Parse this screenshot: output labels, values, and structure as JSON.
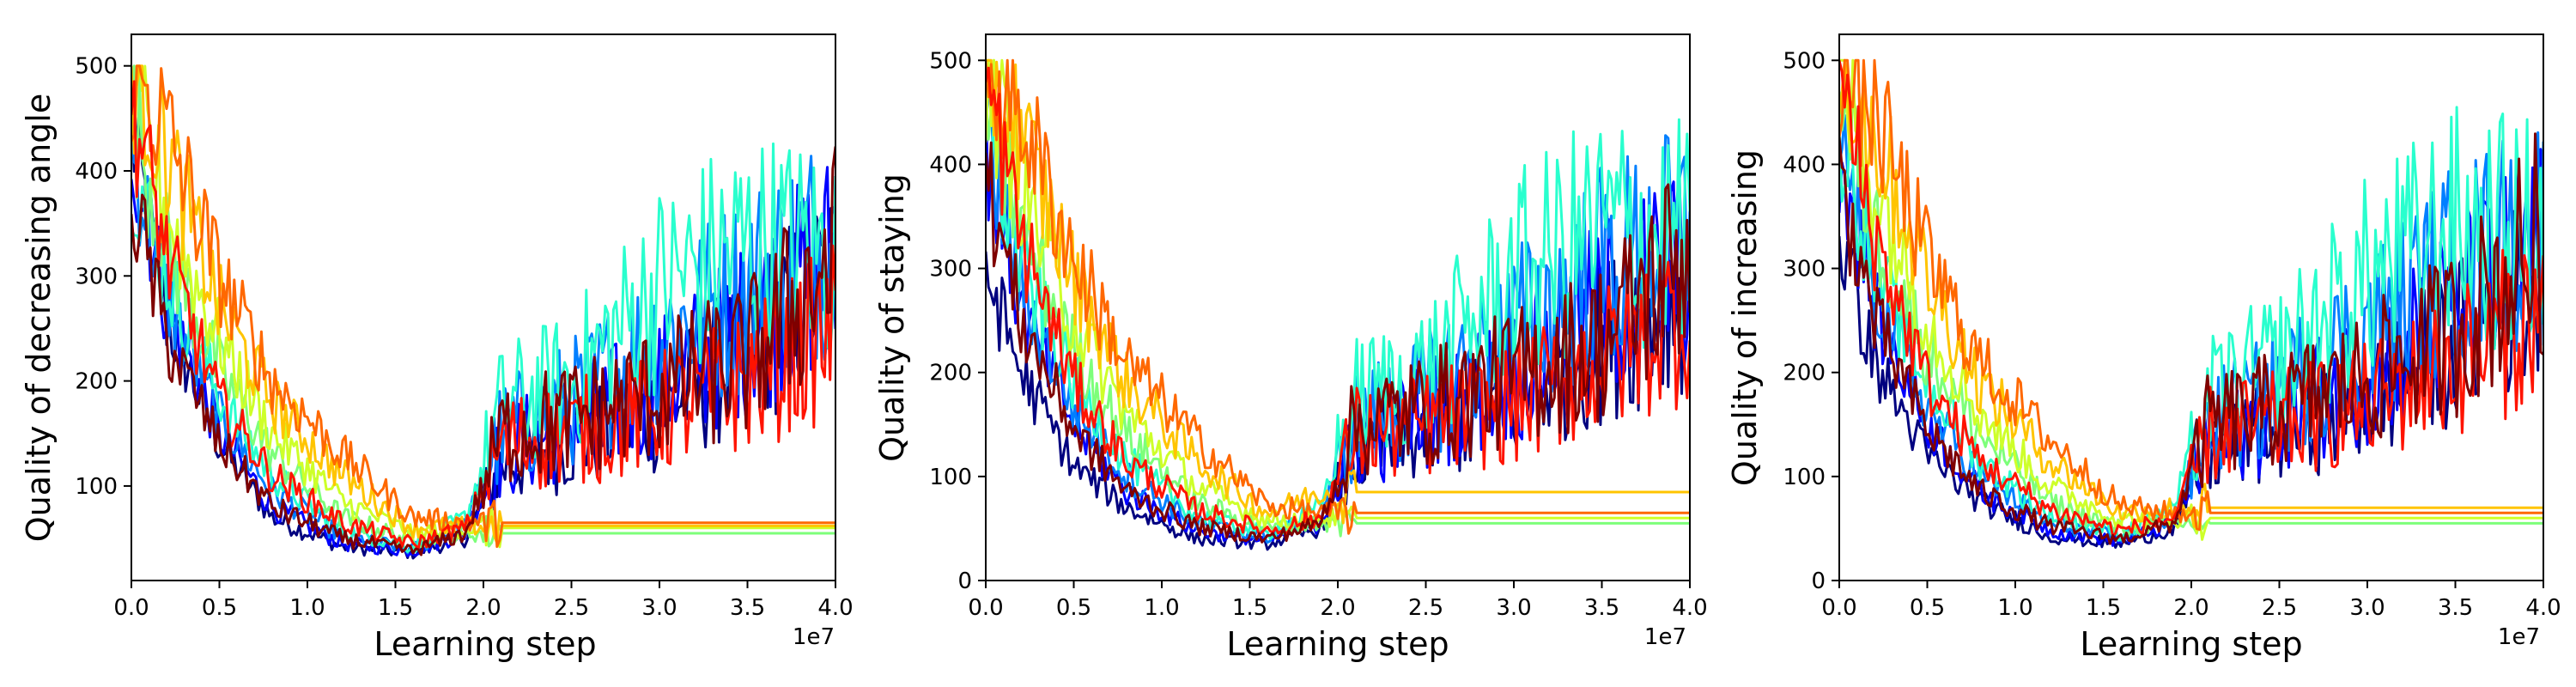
{
  "chart_data": [
    {
      "type": "line",
      "title": "",
      "xlabel": "Learning step",
      "ylabel": "Quality of decreasing angle",
      "x_offset_label": "1e7",
      "xlim": [
        0,
        40000000
      ],
      "ylim": [
        10,
        530
      ],
      "x_ticks": [
        0,
        5000000,
        10000000,
        15000000,
        20000000,
        25000000,
        30000000,
        35000000,
        40000000
      ],
      "x_tick_labels": [
        "0.0",
        "0.5",
        "1.0",
        "1.5",
        "2.0",
        "2.5",
        "3.0",
        "3.5",
        "4.0"
      ],
      "y_ticks": [
        100,
        200,
        300,
        400,
        500
      ],
      "y_tick_labels": [
        "100",
        "200",
        "300",
        "400",
        "500"
      ],
      "grid": false,
      "legend": "none",
      "colormap": "jet",
      "series_count": 24,
      "series": [
        {
          "color": "#00007f",
          "x": [
            0,
            2000000,
            5000000,
            8000000,
            12000000,
            16000000,
            19000000,
            21000000,
            25000000,
            30000000,
            35000000,
            40000000
          ],
          "values": [
            440,
            260,
            140,
            70,
            42,
            36,
            50,
            120,
            145,
            170,
            230,
            300
          ]
        },
        {
          "color": "#0000ff",
          "x": [
            0,
            2000000,
            5000000,
            8000000,
            12000000,
            16000000,
            19000000,
            21000000,
            25000000,
            30000000,
            35000000,
            40000000
          ],
          "values": [
            430,
            270,
            150,
            80,
            45,
            38,
            55,
            130,
            160,
            195,
            250,
            320
          ]
        },
        {
          "color": "#007fff",
          "x": [
            0,
            2000000,
            5000000,
            8000000,
            12000000,
            16000000,
            19000000,
            21000000,
            25000000,
            30000000,
            35000000,
            40000000
          ],
          "values": [
            420,
            280,
            165,
            95,
            52,
            40,
            62,
            150,
            180,
            240,
            290,
            340
          ]
        },
        {
          "color": "#29ffce",
          "x": [
            0,
            2000000,
            5000000,
            8000000,
            12000000,
            16000000,
            19000000,
            21000000,
            25000000,
            30000000,
            35000000,
            40000000
          ],
          "values": [
            410,
            300,
            185,
            110,
            58,
            42,
            70,
            175,
            200,
            290,
            330,
            320
          ]
        },
        {
          "color": "#7dff7a",
          "x": [
            0,
            2000000,
            5000000,
            8000000,
            12000000,
            16000000,
            19000000,
            21000000,
            40000000
          ],
          "values": [
            460,
            330,
            210,
            130,
            70,
            48,
            55,
            55,
            55
          ]
        },
        {
          "color": "#ceff29",
          "x": [
            0,
            2000000,
            5000000,
            8000000,
            12000000,
            16000000,
            19000000,
            21000000,
            40000000
          ],
          "values": [
            480,
            360,
            240,
            150,
            85,
            55,
            60,
            60,
            60
          ]
        },
        {
          "color": "#ffc400",
          "x": [
            0,
            2000000,
            5000000,
            8000000,
            12000000,
            16000000,
            19000000,
            21000000,
            40000000
          ],
          "values": [
            500,
            420,
            270,
            180,
            110,
            60,
            62,
            62,
            62
          ]
        },
        {
          "color": "#ff6800",
          "x": [
            0,
            2000000,
            5000000,
            8000000,
            12000000,
            16000000,
            19000000,
            21000000,
            40000000
          ],
          "values": [
            500,
            440,
            300,
            200,
            130,
            70,
            65,
            65,
            65
          ]
        },
        {
          "color": "#ff1300",
          "x": [
            0,
            2000000,
            5000000,
            8000000,
            12000000,
            16000000,
            19000000,
            21000000,
            25000000,
            30000000,
            35000000,
            40000000
          ],
          "values": [
            470,
            320,
            180,
            110,
            65,
            45,
            60,
            140,
            150,
            170,
            200,
            250
          ]
        },
        {
          "color": "#7f0000",
          "x": [
            0,
            2000000,
            5000000,
            8000000,
            12000000,
            16000000,
            19000000,
            21000000,
            25000000,
            30000000,
            35000000,
            40000000
          ],
          "values": [
            380,
            240,
            140,
            80,
            50,
            38,
            55,
            150,
            165,
            190,
            220,
            320
          ]
        }
      ]
    },
    {
      "type": "line",
      "title": "",
      "xlabel": "Learning step",
      "ylabel": "Quality of staying",
      "x_offset_label": "1e7",
      "xlim": [
        0,
        40000000
      ],
      "ylim": [
        0,
        525
      ],
      "x_ticks": [
        0,
        5000000,
        10000000,
        15000000,
        20000000,
        25000000,
        30000000,
        35000000,
        40000000
      ],
      "x_tick_labels": [
        "0.0",
        "0.5",
        "1.0",
        "1.5",
        "2.0",
        "2.5",
        "3.0",
        "3.5",
        "4.0"
      ],
      "y_ticks": [
        0,
        100,
        200,
        300,
        400,
        500
      ],
      "y_tick_labels": [
        "0",
        "100",
        "200",
        "300",
        "400",
        "500"
      ],
      "grid": false,
      "legend": "none",
      "colormap": "jet",
      "series_count": 24,
      "series": [
        {
          "color": "#00007f",
          "x": [
            0,
            2000000,
            5000000,
            8000000,
            12000000,
            16000000,
            19000000,
            21000000,
            25000000,
            30000000,
            35000000,
            40000000
          ],
          "values": [
            300,
            200,
            110,
            70,
            40,
            35,
            50,
            120,
            145,
            170,
            230,
            280
          ]
        },
        {
          "color": "#0000ff",
          "x": [
            0,
            2000000,
            5000000,
            8000000,
            12000000,
            16000000,
            19000000,
            21000000,
            25000000,
            30000000,
            35000000,
            40000000
          ],
          "values": [
            420,
            260,
            150,
            85,
            48,
            38,
            55,
            130,
            160,
            200,
            260,
            310
          ]
        },
        {
          "color": "#007fff",
          "x": [
            0,
            2000000,
            5000000,
            8000000,
            12000000,
            16000000,
            19000000,
            21000000,
            25000000,
            30000000,
            35000000,
            40000000
          ],
          "values": [
            430,
            280,
            165,
            100,
            55,
            42,
            62,
            150,
            180,
            240,
            300,
            330
          ]
        },
        {
          "color": "#29ffce",
          "x": [
            0,
            2000000,
            5000000,
            8000000,
            12000000,
            16000000,
            19000000,
            21000000,
            25000000,
            30000000,
            35000000,
            40000000
          ],
          "values": [
            440,
            300,
            190,
            115,
            62,
            45,
            70,
            175,
            200,
            290,
            340,
            330
          ]
        },
        {
          "color": "#7dff7a",
          "x": [
            0,
            2000000,
            5000000,
            8000000,
            12000000,
            16000000,
            19000000,
            21000000,
            40000000
          ],
          "values": [
            470,
            340,
            220,
            140,
            75,
            50,
            55,
            55,
            55
          ]
        },
        {
          "color": "#ceff29",
          "x": [
            0,
            2000000,
            5000000,
            8000000,
            12000000,
            16000000,
            19000000,
            21000000,
            40000000
          ],
          "values": [
            490,
            380,
            250,
            160,
            90,
            58,
            60,
            60,
            60
          ]
        },
        {
          "color": "#ffc400",
          "x": [
            0,
            2000000,
            5000000,
            8000000,
            12000000,
            16000000,
            19000000,
            21000000,
            40000000
          ],
          "values": [
            500,
            430,
            290,
            190,
            115,
            65,
            85,
            85,
            85
          ]
        },
        {
          "color": "#ff6800",
          "x": [
            0,
            2000000,
            5000000,
            8000000,
            12000000,
            16000000,
            19000000,
            21000000,
            40000000
          ],
          "values": [
            500,
            450,
            310,
            210,
            135,
            72,
            65,
            65,
            65
          ]
        },
        {
          "color": "#ff1300",
          "x": [
            0,
            2000000,
            5000000,
            8000000,
            12000000,
            16000000,
            19000000,
            21000000,
            25000000,
            30000000,
            35000000,
            40000000
          ],
          "values": [
            480,
            330,
            190,
            115,
            68,
            48,
            60,
            140,
            150,
            170,
            210,
            260
          ]
        },
        {
          "color": "#7f0000",
          "x": [
            0,
            2000000,
            5000000,
            8000000,
            12000000,
            16000000,
            19000000,
            21000000,
            25000000,
            30000000,
            35000000,
            40000000
          ],
          "values": [
            390,
            250,
            145,
            85,
            52,
            40,
            55,
            150,
            165,
            195,
            230,
            320
          ]
        }
      ]
    },
    {
      "type": "line",
      "title": "",
      "xlabel": "Learning step",
      "ylabel": "Quality of increasing",
      "x_offset_label": "1e7",
      "xlim": [
        0,
        40000000
      ],
      "ylim": [
        0,
        525
      ],
      "x_ticks": [
        0,
        5000000,
        10000000,
        15000000,
        20000000,
        25000000,
        30000000,
        35000000,
        40000000
      ],
      "x_tick_labels": [
        "0.0",
        "0.5",
        "1.0",
        "1.5",
        "2.0",
        "2.5",
        "3.0",
        "3.5",
        "4.0"
      ],
      "y_ticks": [
        0,
        100,
        200,
        300,
        400,
        500
      ],
      "y_tick_labels": [
        "0",
        "100",
        "200",
        "300",
        "400",
        "500"
      ],
      "grid": false,
      "legend": "none",
      "colormap": "jet",
      "series_count": 24,
      "series": [
        {
          "color": "#00007f",
          "x": [
            0,
            2000000,
            5000000,
            8000000,
            12000000,
            16000000,
            19000000,
            21000000,
            25000000,
            30000000,
            35000000,
            40000000
          ],
          "values": [
            330,
            210,
            120,
            75,
            42,
            35,
            50,
            120,
            145,
            170,
            230,
            290
          ]
        },
        {
          "color": "#0000ff",
          "x": [
            0,
            2000000,
            5000000,
            8000000,
            12000000,
            16000000,
            19000000,
            21000000,
            25000000,
            30000000,
            35000000,
            40000000
          ],
          "values": [
            420,
            260,
            150,
            85,
            48,
            38,
            55,
            130,
            160,
            200,
            260,
            320
          ]
        },
        {
          "color": "#007fff",
          "x": [
            0,
            2000000,
            5000000,
            8000000,
            12000000,
            16000000,
            19000000,
            21000000,
            25000000,
            30000000,
            35000000,
            40000000
          ],
          "values": [
            430,
            280,
            165,
            100,
            55,
            42,
            62,
            150,
            180,
            240,
            300,
            340
          ]
        },
        {
          "color": "#29ffce",
          "x": [
            0,
            2000000,
            5000000,
            8000000,
            12000000,
            16000000,
            19000000,
            21000000,
            25000000,
            30000000,
            35000000,
            40000000
          ],
          "values": [
            440,
            300,
            190,
            115,
            62,
            45,
            70,
            175,
            210,
            290,
            340,
            330
          ]
        },
        {
          "color": "#7dff7a",
          "x": [
            0,
            2000000,
            5000000,
            8000000,
            12000000,
            16000000,
            19000000,
            21000000,
            40000000
          ],
          "values": [
            470,
            340,
            220,
            140,
            75,
            50,
            55,
            55,
            55
          ]
        },
        {
          "color": "#ceff29",
          "x": [
            0,
            2000000,
            5000000,
            8000000,
            12000000,
            16000000,
            19000000,
            21000000,
            40000000
          ],
          "values": [
            490,
            380,
            250,
            160,
            90,
            58,
            60,
            60,
            60
          ]
        },
        {
          "color": "#ffc400",
          "x": [
            0,
            2000000,
            5000000,
            8000000,
            12000000,
            16000000,
            19000000,
            21000000,
            40000000
          ],
          "values": [
            500,
            430,
            290,
            190,
            115,
            65,
            70,
            70,
            70
          ]
        },
        {
          "color": "#ff6800",
          "x": [
            0,
            2000000,
            5000000,
            8000000,
            12000000,
            16000000,
            19000000,
            21000000,
            40000000
          ],
          "values": [
            500,
            450,
            310,
            210,
            135,
            72,
            65,
            65,
            65
          ]
        },
        {
          "color": "#ff1300",
          "x": [
            0,
            2000000,
            5000000,
            8000000,
            12000000,
            16000000,
            19000000,
            21000000,
            25000000,
            30000000,
            35000000,
            40000000
          ],
          "values": [
            480,
            330,
            190,
            115,
            68,
            48,
            60,
            140,
            150,
            170,
            210,
            260
          ]
        },
        {
          "color": "#7f0000",
          "x": [
            0,
            2000000,
            5000000,
            8000000,
            12000000,
            16000000,
            19000000,
            21000000,
            25000000,
            30000000,
            35000000,
            40000000
          ],
          "values": [
            390,
            250,
            145,
            85,
            52,
            40,
            55,
            150,
            165,
            195,
            240,
            330
          ]
        }
      ]
    }
  ]
}
